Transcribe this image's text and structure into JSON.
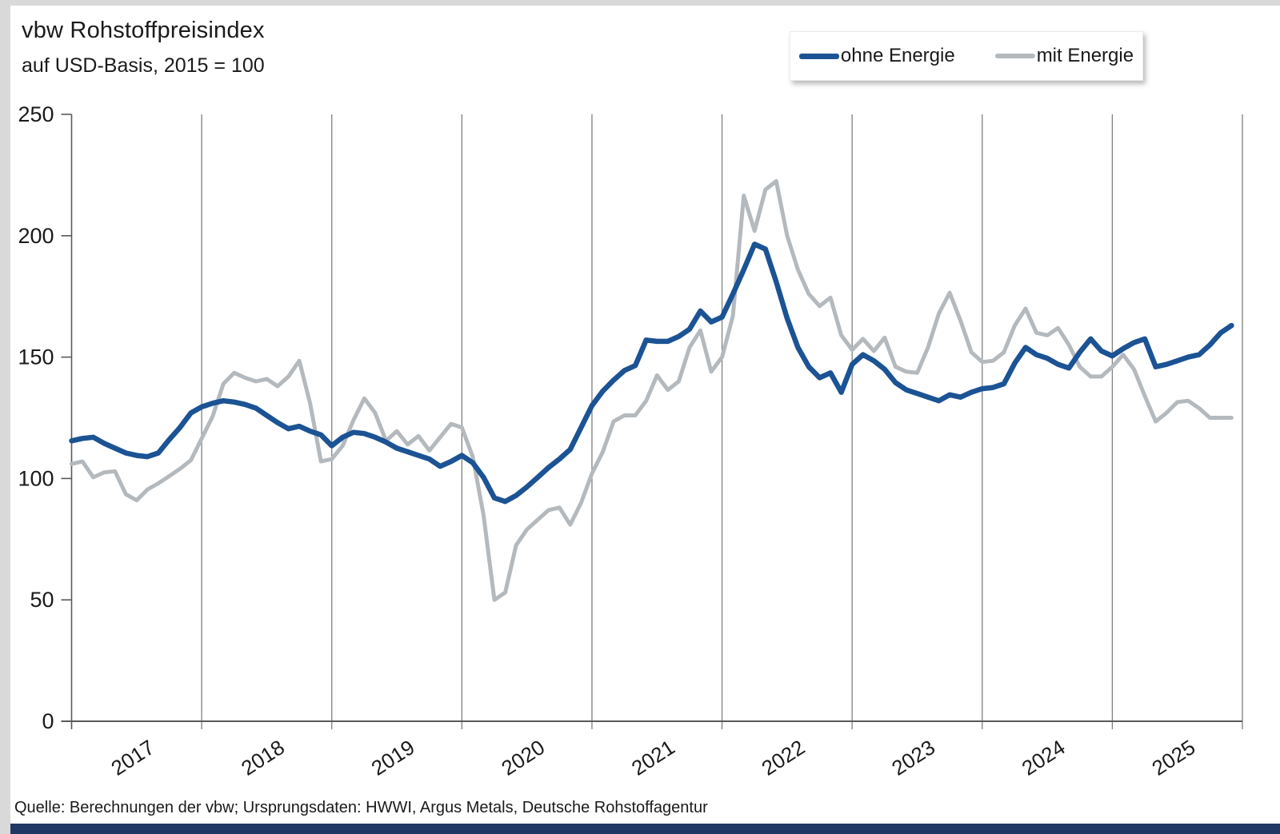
{
  "title": "vbw Rohstoffpreisindex",
  "subtitle": "auf USD-Basis, 2015 = 100",
  "source_note": "Quelle: Berechnungen der vbw; Ursprungsdaten: HWWI, Argus Metals, Deutsche Rohstoffagentur",
  "colors": {
    "series_ohne_energie": "#1b5394",
    "series_mit_energie": "#b4b9bd",
    "gridline": "#808080",
    "axis": "#595959",
    "text": "#1a1a1a",
    "bottom_bar": "#1f3864",
    "background": "#ffffff"
  },
  "legend": {
    "position": "top-right",
    "items": [
      {
        "label": "ohne Energie",
        "color": "#1b5394",
        "thickness": 7
      },
      {
        "label": "mit Energie",
        "color": "#b4b9bd",
        "thickness": 6
      }
    ]
  },
  "chart_data": {
    "type": "line",
    "title": "vbw Rohstoffpreisindex",
    "subtitle": "auf USD-Basis, 2015 = 100",
    "x_unit": "month",
    "x_start": "2017-01",
    "x_end": "2025-12",
    "year_tick_labels": [
      "2017",
      "2018",
      "2019",
      "2020",
      "2021",
      "2022",
      "2023",
      "2024",
      "2025"
    ],
    "ylim": [
      0,
      250
    ],
    "yticks": [
      0,
      50,
      100,
      150,
      200,
      250
    ],
    "grid": "vertical gridlines at each year boundary",
    "legend_position": "top-right",
    "series": [
      {
        "name": "ohne Energie",
        "color": "#1b5394",
        "stroke_width": 6.5,
        "values": [
          115.5,
          116.5,
          117,
          114.5,
          112.5,
          110.5,
          109.5,
          109,
          110.5,
          116,
          121,
          127,
          129.5,
          131,
          132,
          131.5,
          130.5,
          129,
          126,
          123,
          120.5,
          121.5,
          119.5,
          118,
          113.5,
          117,
          119,
          118.5,
          117,
          115,
          112.5,
          111,
          109.5,
          108,
          105,
          107,
          109.5,
          106.5,
          100.5,
          92,
          90.5,
          93,
          96.5,
          100.5,
          104.5,
          108,
          112,
          121,
          130,
          136,
          140.5,
          144.5,
          146.5,
          157,
          156.5,
          156.5,
          158.5,
          161.5,
          169,
          164.5,
          166.5,
          176,
          186,
          196.5,
          194.5,
          181,
          166,
          154,
          146,
          141.5,
          143.5,
          135.5,
          147,
          151,
          148.5,
          145,
          139.5,
          136.5,
          135,
          133.5,
          132,
          134.5,
          133.5,
          135.5,
          137,
          137.5,
          139,
          147.5,
          154,
          151,
          149.5,
          147,
          145.5,
          152,
          157.5,
          152.5,
          150.5,
          153.5,
          156,
          157.5,
          146,
          147,
          148.5,
          150,
          151,
          155,
          160,
          163
        ]
      },
      {
        "name": "mit Energie",
        "color": "#b4b9bd",
        "stroke_width": 5,
        "values": [
          106,
          107,
          100.5,
          102.5,
          103,
          93.5,
          91,
          95.5,
          98,
          101,
          104,
          107.5,
          116.5,
          125.5,
          139,
          143.5,
          141.5,
          140,
          141,
          138,
          142,
          148.5,
          131,
          107,
          108,
          113.5,
          124,
          133,
          127,
          115.5,
          119.5,
          114,
          117.5,
          111.5,
          117,
          122.5,
          121,
          109,
          85,
          50,
          53,
          72.5,
          79,
          83,
          87,
          88,
          81,
          90,
          102,
          111,
          123.5,
          126,
          126,
          132,
          142.5,
          136.5,
          140,
          154,
          161,
          144,
          150,
          167,
          216.5,
          202,
          219,
          222.5,
          200,
          186,
          176,
          171,
          174.5,
          159,
          153,
          157.5,
          152.5,
          158,
          146,
          144,
          143.5,
          154,
          168,
          176.5,
          165,
          152,
          148,
          148.5,
          152,
          163,
          170,
          160,
          159,
          162,
          155,
          146,
          142,
          142,
          146,
          151,
          145,
          134,
          123.5,
          127,
          131.5,
          132,
          129,
          125,
          125,
          125
        ]
      }
    ]
  }
}
